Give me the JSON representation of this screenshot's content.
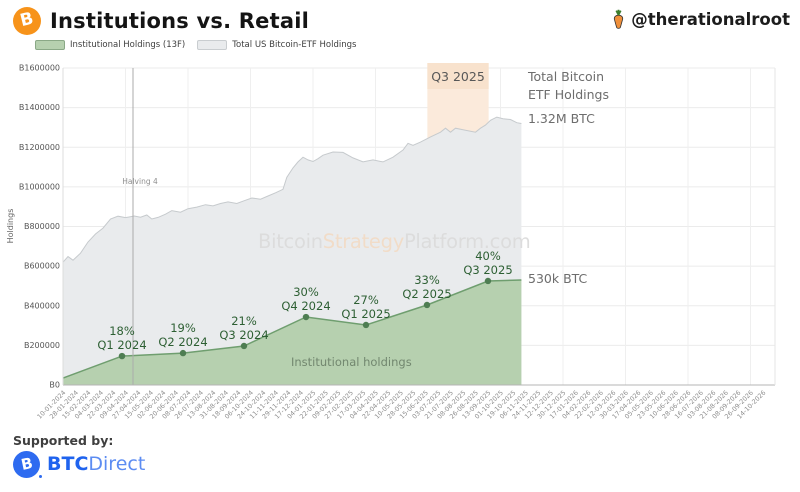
{
  "header": {
    "title": "Institutions vs. Retail",
    "handle": "@therationalroot"
  },
  "legend": [
    {
      "label": "Institutional Holdings (13F)",
      "color": "#b6d0af",
      "border": "#8aa886"
    },
    {
      "label": "Total US Bitcoin-ETF Holdings",
      "color": "#e9ebed",
      "border": "#c9cdd0"
    }
  ],
  "overlay": {
    "total_line1": "Total Bitcoin",
    "total_line2": "ETF Holdings",
    "total_value": "1.32M BTC",
    "inst_value": "530k BTC"
  },
  "footer": {
    "supported_by": "Supported by:",
    "brand_bold": "BTC",
    "brand_light": "Direct"
  },
  "colors": {
    "bitcoin_orange": "#f7931a",
    "band_orange": "#fbeadb",
    "btcdirect_blue": "#2e6bf0",
    "annotation_green": "#2d5f33"
  },
  "chart_data": {
    "type": "area",
    "title": "Institutions vs. Retail",
    "xlabel": "",
    "ylabel": "Holdings",
    "ylim": [
      0,
      1600000
    ],
    "grid": true,
    "legend_position": "top-left",
    "y_ticks": [
      {
        "value": 0,
        "label": "₿0"
      },
      {
        "value": 200000,
        "label": "₿200000"
      },
      {
        "value": 400000,
        "label": "₿400000"
      },
      {
        "value": 600000,
        "label": "₿600000"
      },
      {
        "value": 800000,
        "label": "₿800000"
      },
      {
        "value": 1000000,
        "label": "₿1000000"
      },
      {
        "value": 1200000,
        "label": "₿1200000"
      },
      {
        "value": 1400000,
        "label": "₿1400000"
      },
      {
        "value": 1600000,
        "label": "₿1600000"
      }
    ],
    "x_tick_labels": [
      "10-01-2024",
      "28-01-2024",
      "15-02-2024",
      "04-03-2024",
      "22-03-2024",
      "09-04-2024",
      "27-04-2024",
      "15-05-2024",
      "02-06-2024",
      "20-06-2024",
      "08-07-2024",
      "26-07-2024",
      "13-08-2024",
      "31-08-2024",
      "18-09-2024",
      "06-10-2024",
      "24-10-2024",
      "11-11-2024",
      "29-11-2024",
      "17-12-2024",
      "04-01-2025",
      "22-01-2025",
      "09-02-2025",
      "27-02-2025",
      "17-03-2025",
      "04-04-2025",
      "22-04-2025",
      "10-05-2025",
      "28-05-2025",
      "15-06-2025",
      "03-07-2025",
      "21-07-2025",
      "08-08-2025",
      "26-08-2025",
      "13-09-2025",
      "01-10-2025",
      "19-10-2025",
      "06-11-2025",
      "24-11-2025",
      "12-12-2025",
      "30-12-2025",
      "17-01-2026",
      "04-02-2026",
      "22-02-2026",
      "12-03-2026",
      "30-03-2026",
      "17-04-2026",
      "05-05-2026",
      "23-05-2026",
      "10-06-2026",
      "28-06-2026",
      "16-07-2026",
      "03-08-2026",
      "21-08-2026",
      "08-09-2026",
      "26-09-2026",
      "14-10-2026"
    ],
    "series": [
      {
        "name": "Total US Bitcoin-ETF Holdings",
        "slug": "etf",
        "fill": "#e9ebed",
        "stroke": "#c6cacd",
        "points": [
          [
            0,
            620000
          ],
          [
            0.4,
            648000
          ],
          [
            0.8,
            630000
          ],
          [
            1.4,
            665000
          ],
          [
            2.0,
            722000
          ],
          [
            2.6,
            762000
          ],
          [
            3.2,
            792000
          ],
          [
            3.8,
            838000
          ],
          [
            4.4,
            852000
          ],
          [
            5.0,
            845000
          ],
          [
            5.7,
            853000
          ],
          [
            6.2,
            847000
          ],
          [
            6.7,
            858000
          ],
          [
            7.1,
            838000
          ],
          [
            7.6,
            846000
          ],
          [
            8.2,
            862000
          ],
          [
            8.7,
            880000
          ],
          [
            9.4,
            872000
          ],
          [
            10.0,
            890000
          ],
          [
            10.7,
            898000
          ],
          [
            11.4,
            910000
          ],
          [
            12.0,
            904000
          ],
          [
            12.6,
            916000
          ],
          [
            13.2,
            924000
          ],
          [
            13.9,
            916000
          ],
          [
            14.5,
            930000
          ],
          [
            15.1,
            944000
          ],
          [
            15.8,
            938000
          ],
          [
            16.4,
            954000
          ],
          [
            17.0,
            970000
          ],
          [
            17.6,
            988000
          ],
          [
            17.9,
            1048000
          ],
          [
            18.4,
            1096000
          ],
          [
            18.8,
            1126000
          ],
          [
            19.2,
            1150000
          ],
          [
            19.6,
            1136000
          ],
          [
            20.0,
            1128000
          ],
          [
            20.4,
            1142000
          ],
          [
            20.8,
            1160000
          ],
          [
            21.6,
            1176000
          ],
          [
            22.4,
            1174000
          ],
          [
            23.2,
            1146000
          ],
          [
            24.0,
            1126000
          ],
          [
            24.8,
            1136000
          ],
          [
            25.6,
            1126000
          ],
          [
            26.4,
            1150000
          ],
          [
            27.2,
            1186000
          ],
          [
            27.6,
            1220000
          ],
          [
            28.0,
            1210000
          ],
          [
            28.6,
            1226000
          ],
          [
            29.4,
            1252000
          ],
          [
            30.2,
            1276000
          ],
          [
            30.6,
            1296000
          ],
          [
            31.0,
            1276000
          ],
          [
            31.4,
            1296000
          ],
          [
            32.2,
            1286000
          ],
          [
            33.0,
            1276000
          ],
          [
            33.4,
            1296000
          ],
          [
            33.8,
            1312000
          ],
          [
            34.2,
            1336000
          ],
          [
            34.7,
            1352000
          ],
          [
            35.2,
            1344000
          ],
          [
            35.8,
            1340000
          ],
          [
            36.3,
            1324000
          ],
          [
            36.67,
            1320000
          ]
        ]
      },
      {
        "name": "Institutional Holdings (13F)",
        "slug": "institutional",
        "fill": "#b6d0af",
        "stroke": "#6f9e6f",
        "points": [
          [
            0,
            35000
          ],
          [
            4.72,
            146000
          ],
          [
            9.6,
            161000
          ],
          [
            14.48,
            197000
          ],
          [
            19.44,
            343000
          ],
          [
            24.24,
            303000
          ],
          [
            29.12,
            404000
          ],
          [
            34.0,
            525000
          ],
          [
            36.67,
            530000
          ]
        ]
      }
    ],
    "annotations": [
      {
        "quarter": "Q1 2024",
        "pct": "18%",
        "t": 4.72,
        "btc": 146000
      },
      {
        "quarter": "Q2 2024",
        "pct": "19%",
        "t": 9.6,
        "btc": 161000
      },
      {
        "quarter": "Q3 2024",
        "pct": "21%",
        "t": 14.48,
        "btc": 197000
      },
      {
        "quarter": "Q4 2024",
        "pct": "30%",
        "t": 19.44,
        "btc": 343000
      },
      {
        "quarter": "Q1 2025",
        "pct": "27%",
        "t": 24.24,
        "btc": 303000
      },
      {
        "quarter": "Q2 2025",
        "pct": "33%",
        "t": 29.12,
        "btc": 404000
      },
      {
        "quarter": "Q3 2025",
        "pct": "40%",
        "t": 34.0,
        "btc": 525000
      }
    ],
    "halving": {
      "label": "Halving 4",
      "t": 5.6
    },
    "highlight_band": {
      "label": "Q3 2025",
      "t0": 29.15,
      "t1": 34.05
    },
    "area_label": "Institutional holdings",
    "watermark": [
      {
        "text": "Bitcoin",
        "color": "#dcdcdc"
      },
      {
        "text": "Strategy",
        "color": "#f2dcc7"
      },
      {
        "text": "Platform.com",
        "color": "#dcdcdc"
      }
    ]
  }
}
